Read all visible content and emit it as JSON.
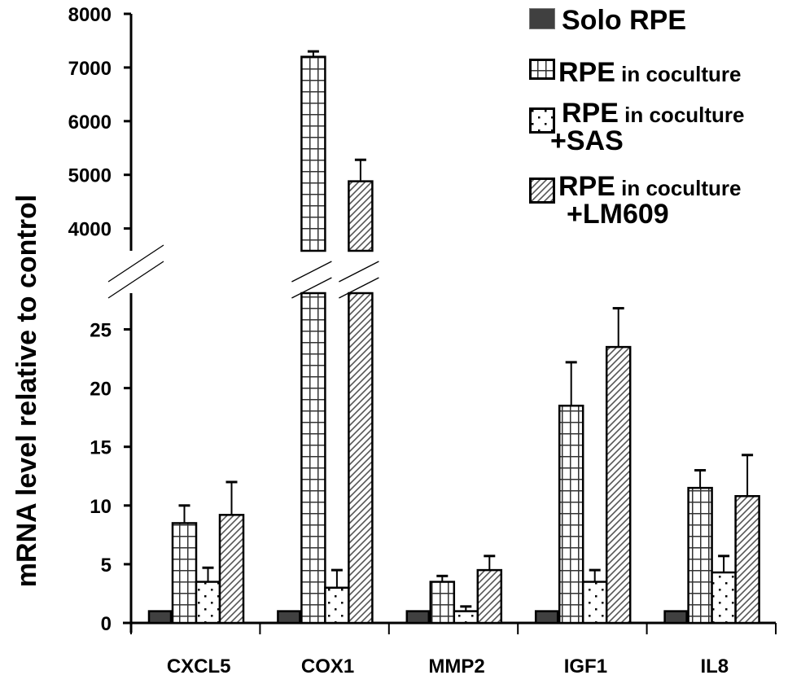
{
  "chart_data": {
    "type": "bar",
    "title": "",
    "xlabel": "",
    "ylabel": "mRNA level relative to control",
    "categories": [
      "CXCL5",
      "COX1",
      "MMP2",
      "IGF1",
      "IL8"
    ],
    "series": [
      {
        "name": "Solo RPE",
        "pattern": "solid",
        "values": [
          1,
          1,
          1,
          1,
          1
        ],
        "errors": [
          0,
          0,
          0,
          0,
          0
        ]
      },
      {
        "name": "RPE in coculture",
        "pattern": "grid",
        "values": [
          8.5,
          7200,
          3.5,
          18.5,
          11.5
        ],
        "errors": [
          1.5,
          100,
          0.5,
          3.7,
          1.5
        ]
      },
      {
        "name": "RPE in coculture +SAS",
        "pattern": "dots",
        "values": [
          3.5,
          3.0,
          1.0,
          3.5,
          4.3
        ],
        "errors": [
          1.2,
          1.5,
          0.4,
          1.0,
          1.4
        ]
      },
      {
        "name": "RPE in coculture +LM609",
        "pattern": "diagonal",
        "values": [
          9.2,
          4880,
          4.5,
          23.5,
          10.8
        ],
        "errors": [
          2.8,
          400,
          1.2,
          3.3,
          3.5
        ]
      }
    ],
    "y_axis_broken": true,
    "ylim_lower": [
      0,
      28
    ],
    "ylim_upper": [
      3600,
      8000
    ],
    "yticks_lower": [
      0,
      5,
      10,
      15,
      20,
      25
    ],
    "yticks_upper": [
      4000,
      5000,
      6000,
      7000,
      8000
    ],
    "grid": false,
    "legend_position": "top-right",
    "legend": [
      {
        "main": "Solo RPE",
        "sub": "",
        "line2": ""
      },
      {
        "main": "RPE",
        "sub": " in coculture",
        "line2": ""
      },
      {
        "main": "RPE",
        "sub": " in coculture",
        "line2": "+SAS"
      },
      {
        "main": "RPE",
        "sub": " in coculture",
        "line2": "+LM609"
      }
    ],
    "colors": {
      "solid_fill": "#404040",
      "stroke": "#000000",
      "background": "#ffffff"
    }
  }
}
